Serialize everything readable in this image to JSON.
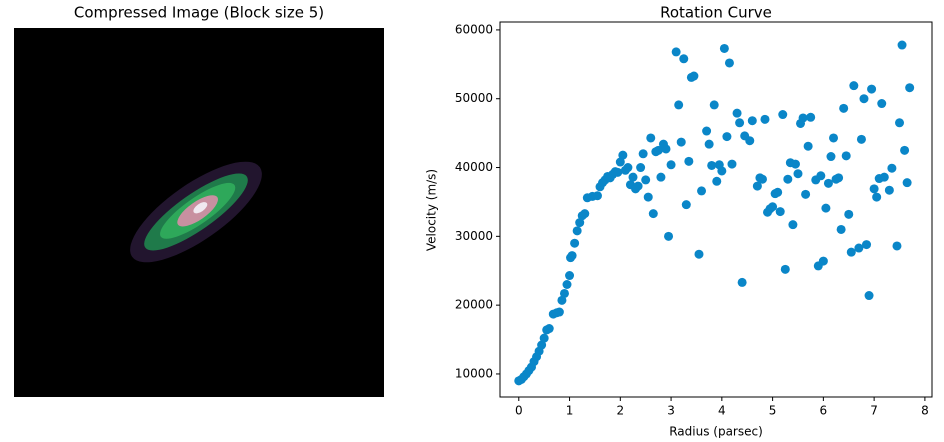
{
  "chart_data": [
    {
      "type": "image",
      "title": "Compressed Image (Block size 5)"
    },
    {
      "type": "scatter",
      "title": "Rotation Curve",
      "xlabel": "Radius (parsec)",
      "ylabel": "Velocity (m/s)",
      "color": "#0a86c8",
      "xlim": [
        -0.37,
        8.14
      ],
      "ylim": [
        6650,
        61150
      ],
      "xticks": [
        0,
        1,
        2,
        3,
        4,
        5,
        6,
        7,
        8
      ],
      "yticks": [
        10000,
        20000,
        30000,
        40000,
        50000,
        60000
      ],
      "x": [
        0.0,
        0.05,
        0.1,
        0.15,
        0.2,
        0.25,
        0.3,
        0.35,
        0.4,
        0.45,
        0.5,
        0.55,
        0.6,
        0.68,
        0.75,
        0.8,
        0.85,
        0.9,
        0.95,
        1.0,
        1.02,
        1.05,
        1.1,
        1.15,
        1.2,
        1.25,
        1.3,
        1.35,
        1.45,
        1.55,
        1.6,
        1.65,
        1.7,
        1.75,
        1.8,
        1.85,
        1.9,
        1.95,
        2.0,
        2.05,
        2.1,
        2.15,
        2.2,
        2.25,
        2.3,
        2.35,
        2.4,
        2.45,
        2.5,
        2.55,
        2.6,
        2.65,
        2.7,
        2.75,
        2.8,
        2.85,
        2.9,
        2.95,
        3.0,
        3.1,
        3.15,
        3.2,
        3.25,
        3.3,
        3.35,
        3.4,
        3.45,
        3.55,
        3.6,
        3.7,
        3.75,
        3.8,
        3.85,
        3.9,
        3.95,
        4.0,
        4.05,
        4.1,
        4.15,
        4.2,
        4.3,
        4.35,
        4.4,
        4.45,
        4.55,
        4.6,
        4.7,
        4.75,
        4.8,
        4.85,
        4.9,
        4.95,
        5.0,
        5.05,
        5.1,
        5.15,
        5.2,
        5.25,
        5.3,
        5.35,
        5.4,
        5.45,
        5.5,
        5.55,
        5.6,
        5.65,
        5.7,
        5.75,
        5.85,
        5.9,
        5.95,
        6.0,
        6.05,
        6.1,
        6.15,
        6.2,
        6.25,
        6.3,
        6.35,
        6.4,
        6.45,
        6.5,
        6.55,
        6.6,
        6.7,
        6.75,
        6.8,
        6.85,
        6.9,
        6.95,
        7.0,
        7.05,
        7.1,
        7.15,
        7.2,
        7.3,
        7.35,
        7.45,
        7.5,
        7.55,
        7.6,
        7.65,
        7.7
      ],
      "values": [
        9000,
        9200,
        9600,
        10000,
        10500,
        11000,
        11800,
        12500,
        13300,
        14200,
        15200,
        16400,
        16600,
        18700,
        18900,
        19000,
        20700,
        21700,
        23000,
        24300,
        26900,
        27200,
        29000,
        30800,
        32000,
        33000,
        33300,
        35600,
        35800,
        35900,
        37200,
        37800,
        38200,
        38700,
        38500,
        39000,
        39400,
        39300,
        40800,
        41800,
        39600,
        40000,
        37500,
        38600,
        36900,
        37300,
        40000,
        42000,
        38200,
        35700,
        44300,
        33300,
        42300,
        42500,
        38600,
        43400,
        42700,
        30000,
        40400,
        56800,
        49100,
        43700,
        55800,
        34600,
        40900,
        53100,
        53300,
        27400,
        36600,
        45300,
        43400,
        40300,
        49100,
        38000,
        40400,
        39500,
        57300,
        44500,
        55200,
        40500,
        47900,
        46500,
        23300,
        44600,
        43900,
        46800,
        37300,
        38500,
        38300,
        47000,
        33500,
        34000,
        34300,
        36200,
        36400,
        33600,
        47700,
        25200,
        38300,
        40700,
        31700,
        40500,
        39100,
        46400,
        47200,
        36100,
        43100,
        47300,
        38200,
        25700,
        38800,
        26400,
        34100,
        37700,
        41600,
        44300,
        38300,
        38500,
        31000,
        48600,
        41700,
        33200,
        27700,
        51900,
        28300,
        44100,
        50000,
        28800,
        21400,
        51400,
        36900,
        35700,
        38400,
        49300,
        38600,
        36700,
        39900,
        28600,
        46500,
        57800,
        42500,
        37800,
        51600
      ]
    }
  ]
}
